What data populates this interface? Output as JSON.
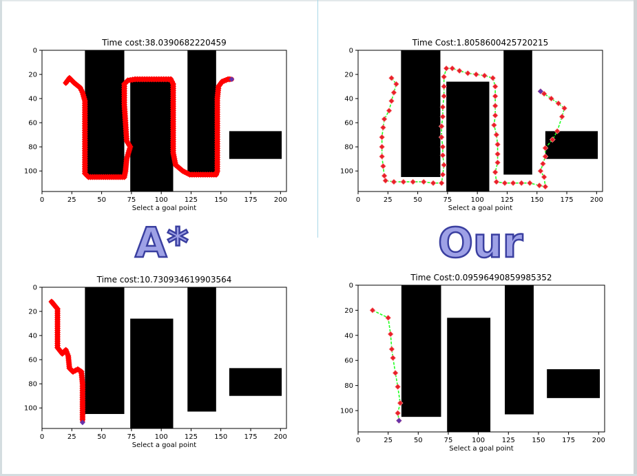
{
  "labels": {
    "astar": "A*",
    "ours": "Our"
  },
  "colors": {
    "astar_path": "#ff0000",
    "ours_line": "#22ff22",
    "ours_marker": "#e8202a",
    "endpoint": "#6633aa",
    "obstacle": "#000000"
  },
  "chart_data": [
    {
      "type": "scatter",
      "title": "Time cost:38.0390682220459",
      "xlabel": "Select a goal point",
      "ylabel": "",
      "xlim": [
        0,
        205
      ],
      "ylim": [
        0,
        117
      ],
      "y_inverted": true,
      "xticks": [
        0,
        25,
        50,
        75,
        100,
        125,
        150,
        175,
        200
      ],
      "yticks": [
        0,
        20,
        40,
        60,
        80,
        100
      ],
      "obstacles": [
        {
          "x": [
            36,
            69
          ],
          "y": [
            0,
            105
          ]
        },
        {
          "x": [
            74,
            110
          ],
          "y": [
            26,
            117
          ]
        },
        {
          "x": [
            122,
            146
          ],
          "y": [
            0,
            103
          ]
        },
        {
          "x": [
            157,
            201
          ],
          "y": [
            67,
            90
          ]
        }
      ],
      "path_style": "astar",
      "path": [
        [
          20,
          27
        ],
        [
          23,
          23
        ],
        [
          27,
          27
        ],
        [
          32,
          31
        ],
        [
          34,
          35
        ],
        [
          36,
          42
        ],
        [
          36,
          72
        ],
        [
          36,
          102
        ],
        [
          39,
          105
        ],
        [
          55,
          105
        ],
        [
          69,
          105
        ],
        [
          70,
          100
        ],
        [
          71,
          90
        ],
        [
          74,
          80
        ],
        [
          71,
          75
        ],
        [
          69,
          45
        ],
        [
          69,
          28
        ],
        [
          72,
          25
        ],
        [
          78,
          24
        ],
        [
          88,
          24
        ],
        [
          98,
          24
        ],
        [
          108,
          24
        ],
        [
          110,
          28
        ],
        [
          110,
          50
        ],
        [
          110,
          85
        ],
        [
          112,
          95
        ],
        [
          118,
          100
        ],
        [
          124,
          103
        ],
        [
          135,
          103
        ],
        [
          146,
          103
        ],
        [
          147,
          100
        ],
        [
          147,
          70
        ],
        [
          147,
          40
        ],
        [
          148,
          30
        ],
        [
          151,
          26
        ],
        [
          156,
          24
        ],
        [
          159,
          24
        ]
      ],
      "end": [
        159,
        24
      ]
    },
    {
      "type": "scatter",
      "title": "Time Cost:1.8058600425720215",
      "xlabel": "Select a goal point",
      "ylabel": "",
      "xlim": [
        0,
        205
      ],
      "ylim": [
        0,
        117
      ],
      "y_inverted": true,
      "xticks": [
        0,
        25,
        50,
        75,
        100,
        125,
        150,
        175,
        200
      ],
      "yticks": [
        0,
        20,
        40,
        60,
        80,
        100
      ],
      "obstacles": [
        {
          "x": [
            36,
            69
          ],
          "y": [
            0,
            105
          ]
        },
        {
          "x": [
            74,
            110
          ],
          "y": [
            26,
            117
          ]
        },
        {
          "x": [
            122,
            146
          ],
          "y": [
            0,
            103
          ]
        },
        {
          "x": [
            157,
            201
          ],
          "y": [
            67,
            90
          ]
        }
      ],
      "path_style": "ours",
      "path": [
        [
          28,
          23
        ],
        [
          32,
          28
        ],
        [
          30,
          35
        ],
        [
          28,
          42
        ],
        [
          26,
          50
        ],
        [
          22,
          57
        ],
        [
          21,
          64
        ],
        [
          20,
          72
        ],
        [
          20,
          80
        ],
        [
          20,
          88
        ],
        [
          21,
          96
        ],
        [
          22,
          104
        ],
        [
          23,
          108
        ],
        [
          30,
          109
        ],
        [
          38,
          109
        ],
        [
          46,
          109
        ],
        [
          55,
          109
        ],
        [
          63,
          110
        ],
        [
          70,
          110
        ],
        [
          71,
          103
        ],
        [
          72,
          95
        ],
        [
          71,
          87
        ],
        [
          71,
          80
        ],
        [
          70,
          72
        ],
        [
          70,
          63
        ],
        [
          71,
          55
        ],
        [
          71,
          47
        ],
        [
          72,
          38
        ],
        [
          72,
          30
        ],
        [
          72,
          22
        ],
        [
          74,
          15
        ],
        [
          79,
          15
        ],
        [
          85,
          17
        ],
        [
          92,
          19
        ],
        [
          99,
          20
        ],
        [
          106,
          21
        ],
        [
          113,
          23
        ],
        [
          115,
          30
        ],
        [
          115,
          38
        ],
        [
          115,
          46
        ],
        [
          115,
          54
        ],
        [
          114,
          62
        ],
        [
          116,
          70
        ],
        [
          117,
          78
        ],
        [
          117,
          86
        ],
        [
          117,
          93
        ],
        [
          115,
          101
        ],
        [
          116,
          109
        ],
        [
          123,
          110
        ],
        [
          130,
          110
        ],
        [
          137,
          110
        ],
        [
          144,
          110
        ],
        [
          152,
          112
        ],
        [
          157,
          113
        ],
        [
          156,
          105
        ],
        [
          153,
          100
        ],
        [
          155,
          94
        ],
        [
          157,
          88
        ],
        [
          157,
          81
        ],
        [
          163,
          74
        ],
        [
          167,
          67
        ],
        [
          171,
          55
        ],
        [
          173,
          48
        ],
        [
          168,
          44
        ],
        [
          162,
          40
        ],
        [
          156,
          36
        ],
        [
          153,
          34
        ]
      ],
      "end": [
        153,
        34
      ]
    },
    {
      "type": "scatter",
      "title": "Time cost:10.730934619903564",
      "xlabel": "Select a goal point",
      "ylabel": "",
      "xlim": [
        0,
        205
      ],
      "ylim": [
        0,
        117
      ],
      "y_inverted": true,
      "xticks": [
        0,
        25,
        50,
        75,
        100,
        125,
        150,
        175,
        200
      ],
      "yticks": [
        0,
        20,
        40,
        60,
        80,
        100
      ],
      "obstacles": [
        {
          "x": [
            36,
            69
          ],
          "y": [
            0,
            105
          ]
        },
        {
          "x": [
            74,
            110
          ],
          "y": [
            26,
            117
          ]
        },
        {
          "x": [
            122,
            146
          ],
          "y": [
            0,
            103
          ]
        },
        {
          "x": [
            157,
            201
          ],
          "y": [
            67,
            90
          ]
        }
      ],
      "path_style": "astar",
      "path": [
        [
          8,
          12
        ],
        [
          13,
          18
        ],
        [
          13,
          50
        ],
        [
          17,
          55
        ],
        [
          20,
          52
        ],
        [
          22,
          57
        ],
        [
          23,
          67
        ],
        [
          26,
          70
        ],
        [
          30,
          68
        ],
        [
          33,
          70
        ],
        [
          34,
          80
        ],
        [
          34,
          95
        ],
        [
          34,
          111
        ]
      ],
      "end": [
        34,
        112
      ]
    },
    {
      "type": "scatter",
      "title": "Time Cost:0.09596490859985352",
      "xlabel": "Select a goal point",
      "ylabel": "",
      "xlim": [
        0,
        205
      ],
      "ylim": [
        0,
        117
      ],
      "y_inverted": true,
      "xticks": [
        0,
        25,
        50,
        75,
        100,
        125,
        150,
        175,
        200
      ],
      "yticks": [
        0,
        20,
        40,
        60,
        80,
        100
      ],
      "obstacles": [
        {
          "x": [
            36,
            69
          ],
          "y": [
            0,
            105
          ]
        },
        {
          "x": [
            74,
            110
          ],
          "y": [
            26,
            117
          ]
        },
        {
          "x": [
            122,
            146
          ],
          "y": [
            0,
            103
          ]
        },
        {
          "x": [
            157,
            201
          ],
          "y": [
            67,
            90
          ]
        }
      ],
      "path_style": "ours",
      "path": [
        [
          12,
          20
        ],
        [
          25,
          26
        ],
        [
          27,
          39
        ],
        [
          28,
          51
        ],
        [
          29,
          58
        ],
        [
          31,
          70
        ],
        [
          33,
          81
        ],
        [
          35,
          94
        ],
        [
          33,
          102
        ],
        [
          34,
          108
        ]
      ],
      "end": [
        34,
        108
      ]
    }
  ]
}
